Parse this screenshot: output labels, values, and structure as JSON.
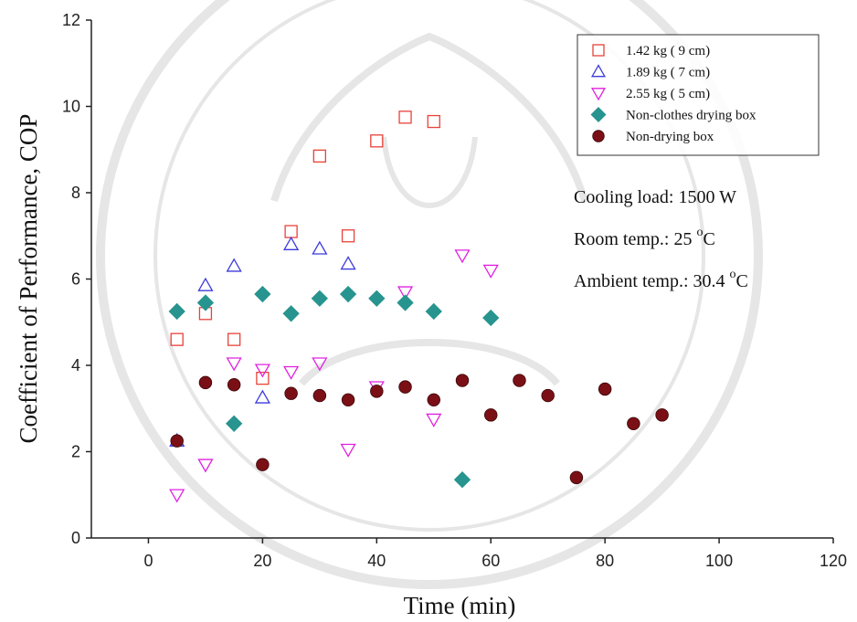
{
  "chart_data": {
    "type": "scatter",
    "xlabel": "Time (min)",
    "ylabel": "Coefficient of Performance, COP",
    "xlim": [
      -10,
      120
    ],
    "ylim": [
      0,
      12
    ],
    "xticks": [
      "0",
      "20",
      "40",
      "60",
      "80",
      "100",
      "120"
    ],
    "yticks": [
      "0",
      "2",
      "4",
      "6",
      "8",
      "10",
      "12"
    ],
    "grid": false,
    "legend_position": "top-right",
    "series": [
      {
        "name": "1.42 kg ( 9 cm)",
        "marker": "square-open",
        "color": "#e8423a",
        "points": [
          [
            5,
            4.6
          ],
          [
            10,
            5.2
          ],
          [
            15,
            4.6
          ],
          [
            20,
            3.7
          ],
          [
            25,
            7.1
          ],
          [
            30,
            8.85
          ],
          [
            35,
            7.0
          ],
          [
            40,
            9.2
          ],
          [
            45,
            9.75
          ],
          [
            50,
            9.65
          ]
        ]
      },
      {
        "name": "1.89 kg ( 7 cm)",
        "marker": "triangle-up-open",
        "color": "#3b3bdb",
        "points": [
          [
            5,
            2.25
          ],
          [
            10,
            5.85
          ],
          [
            15,
            6.3
          ],
          [
            20,
            3.25
          ],
          [
            25,
            6.8
          ],
          [
            30,
            6.7
          ],
          [
            35,
            6.35
          ]
        ]
      },
      {
        "name": "2.55 kg ( 5 cm)",
        "marker": "triangle-down-open",
        "color": "#e020e0",
        "points": [
          [
            5,
            1.0
          ],
          [
            10,
            1.7
          ],
          [
            15,
            4.05
          ],
          [
            20,
            3.9
          ],
          [
            25,
            3.85
          ],
          [
            30,
            4.05
          ],
          [
            35,
            2.05
          ],
          [
            40,
            3.5
          ],
          [
            45,
            5.7
          ],
          [
            50,
            2.75
          ],
          [
            55,
            6.55
          ],
          [
            60,
            6.2
          ]
        ]
      },
      {
        "name": "Non-clothes drying box",
        "marker": "diamond",
        "color": "#27948f",
        "points": [
          [
            5,
            5.25
          ],
          [
            10,
            5.45
          ],
          [
            15,
            2.65
          ],
          [
            20,
            5.65
          ],
          [
            25,
            5.2
          ],
          [
            30,
            5.55
          ],
          [
            35,
            5.65
          ],
          [
            40,
            5.55
          ],
          [
            45,
            5.45
          ],
          [
            50,
            5.25
          ],
          [
            55,
            1.35
          ],
          [
            60,
            5.1
          ]
        ]
      },
      {
        "name": "Non-drying box",
        "marker": "circle",
        "color": "#7a1016",
        "points": [
          [
            5,
            2.25
          ],
          [
            10,
            3.6
          ],
          [
            15,
            3.55
          ],
          [
            20,
            1.7
          ],
          [
            25,
            3.35
          ],
          [
            30,
            3.3
          ],
          [
            35,
            3.2
          ],
          [
            40,
            3.4
          ],
          [
            45,
            3.5
          ],
          [
            50,
            3.2
          ],
          [
            55,
            3.65
          ],
          [
            60,
            2.85
          ],
          [
            65,
            3.65
          ],
          [
            70,
            3.3
          ],
          [
            75,
            1.4
          ],
          [
            80,
            3.45
          ],
          [
            85,
            2.65
          ],
          [
            90,
            2.85
          ]
        ]
      }
    ],
    "annotations": [
      {
        "text": "Cooling load: 1500 W",
        "sup": "",
        "suffix": ""
      },
      {
        "text": "Room temp.: 25 ",
        "sup": "o",
        "suffix": "C"
      },
      {
        "text": "Ambient temp.: 30.4 ",
        "sup": "o",
        "suffix": "C"
      }
    ]
  }
}
